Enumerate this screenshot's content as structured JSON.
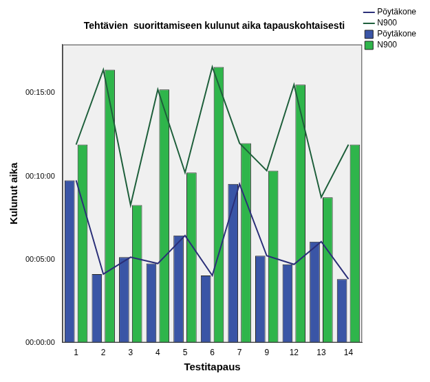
{
  "chart_data": {
    "type": "bar",
    "title": "Tehtävien  suorittamiseen kulunut aika tapauskohtaisesti",
    "x_label": "Testitapaus",
    "y_label": "Kulunut aika",
    "categories": [
      "1",
      "2",
      "3",
      "4",
      "5",
      "6",
      "7",
      "9",
      "12",
      "13",
      "14"
    ],
    "series": [
      {
        "name": "Pöytäkone",
        "type": "bar",
        "color": "#3a55a6",
        "values": [
          585,
          247,
          308,
          285,
          386,
          242,
          572,
          313,
          282,
          364,
          229
        ]
      },
      {
        "name": "N900",
        "type": "bar",
        "color": "#2fb54b",
        "values": [
          714,
          984,
          496,
          913,
          613,
          994,
          719,
          620,
          930,
          524,
          714
        ]
      },
      {
        "name": "Pöytäkone",
        "type": "line",
        "color": "#2b2f78",
        "values": [
          585,
          247,
          308,
          285,
          386,
          242,
          572,
          313,
          282,
          364,
          229
        ]
      },
      {
        "name": "N900",
        "type": "line",
        "color": "#1e5f3b",
        "values": [
          714,
          984,
          496,
          913,
          613,
          994,
          719,
          620,
          930,
          524,
          714
        ]
      }
    ],
    "ylim": [
      0,
      1075
    ],
    "yticks": [
      {
        "value": 0,
        "label": "00:00:00"
      },
      {
        "value": 300,
        "label": "00:05:00"
      },
      {
        "value": 600,
        "label": "00:10:00"
      },
      {
        "value": 900,
        "label": "00:15:00"
      }
    ],
    "grid": false,
    "legend": "upper right"
  }
}
